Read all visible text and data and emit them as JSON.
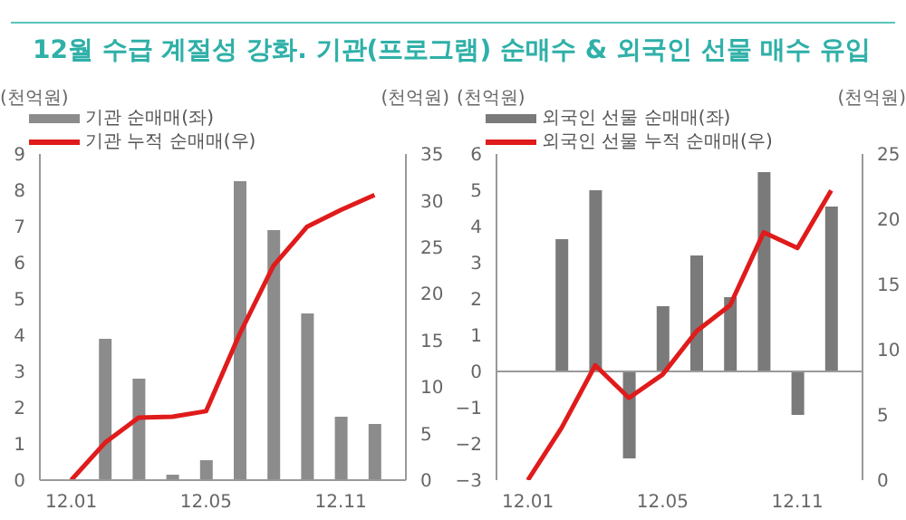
{
  "chart_data": [
    {
      "type": "bar",
      "title": "12월 수급 계절성 강화. 기관(프로그램) 순매수 & 외국인 선물 매수 유입",
      "ylabel": "(천억원)",
      "y2label": "(천억원)",
      "categories": [
        "12.01",
        null,
        null,
        null,
        "12.05",
        null,
        null,
        null,
        "12.11",
        null
      ],
      "series": [
        {
          "name": "기관 순매매(좌)",
          "color": "#8c8c8c",
          "values": [
            null,
            3.9,
            2.8,
            0.15,
            0.55,
            8.25,
            6.9,
            4.6,
            1.75,
            1.55
          ]
        },
        {
          "name": "기관 누적 순매매(우)",
          "type": "line",
          "axis": "y2",
          "color": "#e01b1b",
          "values": [
            0,
            4,
            6.7,
            6.8,
            7.4,
            15.7,
            23,
            27.2,
            29,
            30.6
          ]
        }
      ],
      "ylim": [
        0,
        9
      ],
      "yticks": [
        0,
        1,
        2,
        3,
        4,
        5,
        6,
        7,
        8,
        9
      ],
      "y2lim": [
        0,
        35
      ],
      "y2ticks": [
        0,
        5,
        10,
        15,
        20,
        25,
        30,
        35
      ],
      "grid": false,
      "legend": "top",
      "marker": "none",
      "line_style": "solid"
    },
    {
      "type": "bar",
      "ylabel": "(천억원)",
      "y2label": "(천억원)",
      "categories": [
        "12.01",
        null,
        null,
        null,
        "12.05",
        null,
        null,
        null,
        "12.11",
        null
      ],
      "series": [
        {
          "name": "외국인 선물 순매매(좌)",
          "color": "#7a7a7a",
          "values": [
            null,
            3.65,
            5.0,
            -2.4,
            1.8,
            3.2,
            2.05,
            5.5,
            -1.2,
            4.55
          ]
        },
        {
          "name": "외국인 선물 누적 순매매(우)",
          "type": "line",
          "axis": "y2",
          "color": "#e01b1b",
          "values": [
            0,
            4,
            8.8,
            6.3,
            8.1,
            11.4,
            13.4,
            19,
            17.8,
            22.2
          ]
        }
      ],
      "ref_lines": [
        {
          "axis": "y",
          "value": 0,
          "color": "#999999"
        }
      ],
      "ylim": [
        -3,
        6
      ],
      "yticks": [
        -3,
        -2,
        -1,
        0,
        1,
        2,
        3,
        4,
        5,
        6
      ],
      "y2lim": [
        0,
        25
      ],
      "y2ticks": [
        0,
        5,
        10,
        15,
        20,
        25
      ],
      "grid": false,
      "legend": "top",
      "marker": "none",
      "line_style": "solid"
    }
  ]
}
